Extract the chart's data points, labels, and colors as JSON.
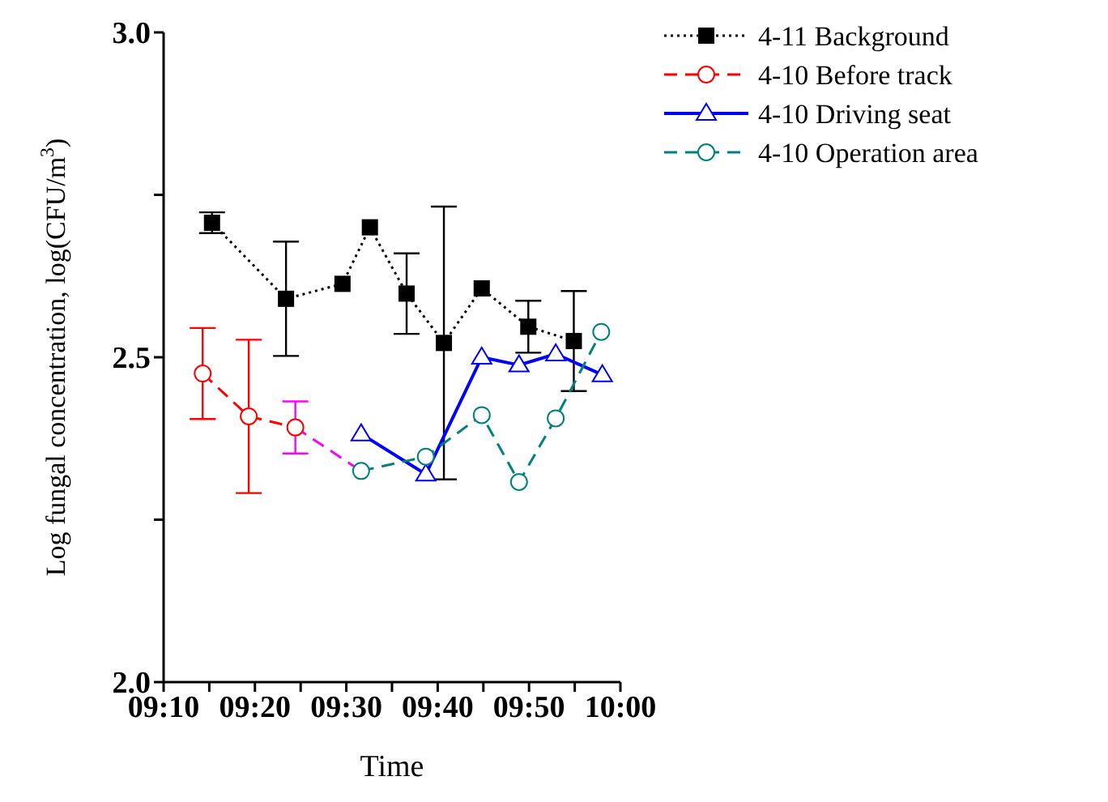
{
  "chart_data": {
    "type": "line",
    "xlabel": "Time",
    "ylabel": "Log fungal concentration, log(CFU/m$^{3}$)",
    "xlim": [
      9.1667,
      10
    ],
    "xticks": [
      {
        "value": 9.1667,
        "label": "09:10"
      },
      {
        "value": 9.25,
        "label": null
      },
      {
        "value": 9.3333,
        "label": "09:20"
      },
      {
        "value": 9.4167,
        "label": null
      },
      {
        "value": 9.5,
        "label": "09:30"
      },
      {
        "value": 9.5833,
        "label": null
      },
      {
        "value": 9.6667,
        "label": "09:40"
      },
      {
        "value": 9.75,
        "label": null
      },
      {
        "value": 9.8333,
        "label": "09:50"
      },
      {
        "value": 9.9167,
        "label": null
      },
      {
        "value": 10,
        "label": "10:00"
      }
    ],
    "ylim": [
      2,
      3
    ],
    "yticks": [
      {
        "value": 2,
        "label": "2.0"
      },
      {
        "value": 2.25,
        "label": null
      },
      {
        "value": 2.5,
        "label": "2.5"
      },
      {
        "value": 2.75,
        "label": null
      },
      {
        "value": 3,
        "label": "3.0"
      }
    ],
    "grid": false,
    "legend": "top right",
    "series": [
      {
        "name": "4-11 Background",
        "color": "#000000",
        "marker": "square",
        "line_style": "dotted",
        "x": [
          9.255,
          9.39,
          9.493,
          9.543,
          9.61,
          9.678,
          9.747,
          9.832,
          9.915
        ],
        "values": [
          2.707,
          2.59,
          2.613,
          2.7,
          2.598,
          2.522,
          2.606,
          2.547,
          2.525
        ],
        "errors": [
          0.016,
          0.088,
          null,
          null,
          0.062,
          0.21,
          null,
          0.04,
          0.077
        ]
      },
      {
        "name": "4-10 Before track",
        "color": "#ff0000",
        "marker": "circle",
        "line_style": "dashed",
        "x": [
          9.238,
          9.322,
          9.407
        ],
        "values": [
          2.475,
          2.409,
          2.392
        ],
        "errors": [
          0.07,
          0.118,
          null
        ]
      },
      {
        "color": "#ff00ff",
        "marker": "none",
        "line_style": "dashed",
        "x": [
          9.407,
          9.527
        ],
        "values": [
          2.392,
          2.325
        ],
        "errors": [
          0.04,
          null
        ]
      },
      {
        "name": "4-10 Driving seat",
        "color": "#0000ff",
        "marker": "triangle",
        "line_style": "solid",
        "x": [
          9.527,
          9.645,
          9.747,
          9.815,
          9.882,
          9.967
        ],
        "values": [
          2.382,
          2.32,
          2.5,
          2.488,
          2.505,
          2.473
        ]
      },
      {
        "name": "4-10 Operation area",
        "color": "#008080",
        "marker": "circle",
        "line_style": "dashed",
        "x": [
          9.527,
          9.645,
          9.747,
          9.815,
          9.882,
          9.965
        ],
        "values": [
          2.325,
          2.347,
          2.411,
          2.308,
          2.406,
          2.539
        ]
      }
    ]
  }
}
